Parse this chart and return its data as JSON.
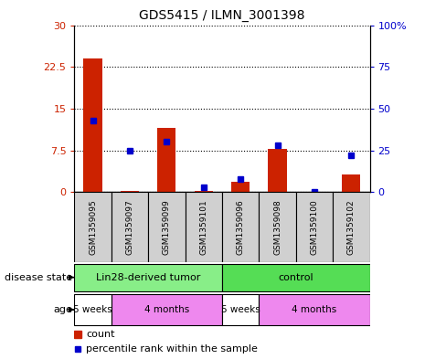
{
  "title": "GDS5415 / ILMN_3001398",
  "samples": [
    "GSM1359095",
    "GSM1359097",
    "GSM1359099",
    "GSM1359101",
    "GSM1359096",
    "GSM1359098",
    "GSM1359100",
    "GSM1359102"
  ],
  "counts": [
    24.0,
    0.15,
    11.5,
    0.25,
    1.8,
    7.8,
    0.05,
    3.2
  ],
  "percentiles": [
    43,
    25,
    30,
    3,
    8,
    28,
    0,
    22
  ],
  "ylim_left": [
    0,
    30
  ],
  "ylim_right": [
    0,
    100
  ],
  "yticks_left": [
    0,
    7.5,
    15,
    22.5,
    30
  ],
  "ytick_labels_left": [
    "0",
    "7.5",
    "15",
    "22.5",
    "30"
  ],
  "yticks_right": [
    0,
    25,
    50,
    75,
    100
  ],
  "ytick_labels_right": [
    "0",
    "25",
    "50",
    "75",
    "100%"
  ],
  "bar_color": "#cc2200",
  "dot_color": "#0000cc",
  "plot_bg": "#ffffff",
  "cell_bg": "#d0d0d0",
  "disease_state_groups": [
    {
      "label": "Lin28-derived tumor",
      "start": 0,
      "end": 4,
      "color": "#88ee88"
    },
    {
      "label": "control",
      "start": 4,
      "end": 8,
      "color": "#55dd55"
    }
  ],
  "age_groups": [
    {
      "label": "5 weeks",
      "start": 0,
      "end": 1,
      "color": "#ffffff"
    },
    {
      "label": "4 months",
      "start": 1,
      "end": 4,
      "color": "#ee88ee"
    },
    {
      "label": "5 weeks",
      "start": 4,
      "end": 5,
      "color": "#ffffff"
    },
    {
      "label": "4 months",
      "start": 5,
      "end": 8,
      "color": "#ee88ee"
    }
  ],
  "legend_count_color": "#cc2200",
  "legend_pct_color": "#0000cc",
  "label_disease_state": "disease state",
  "label_age": "age",
  "legend_count_label": "count",
  "legend_pct_label": "percentile rank within the sample",
  "fig_bg": "#ffffff"
}
